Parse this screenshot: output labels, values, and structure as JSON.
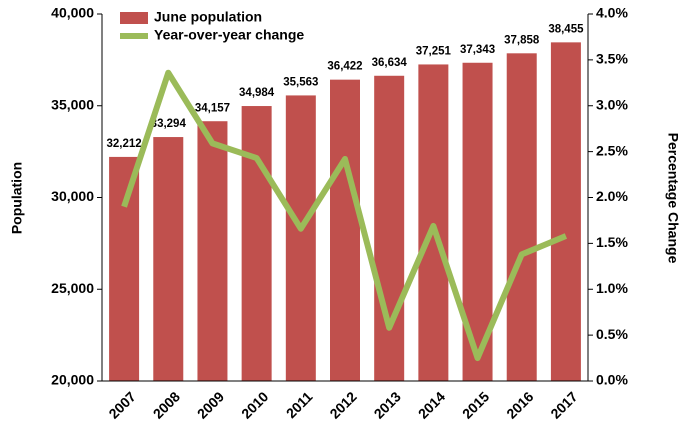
{
  "chart_data": {
    "type": "bar",
    "categories": [
      "2007",
      "2008",
      "2009",
      "2010",
      "2011",
      "2012",
      "2013",
      "2014",
      "2015",
      "2016",
      "2017"
    ],
    "series": [
      {
        "name": "June population",
        "type": "bar",
        "color": "#c0504d",
        "values": [
          32212,
          33294,
          34157,
          34984,
          35563,
          36422,
          36634,
          37251,
          37343,
          37858,
          38455
        ],
        "value_labels": [
          "32,212",
          "33,294",
          "34,157",
          "34,984",
          "35,563",
          "36,422",
          "36,634",
          "37,251",
          "37,343",
          "37,858",
          "38,455"
        ]
      },
      {
        "name": "Year-over-year change",
        "type": "line",
        "axis": "y2",
        "color": "#9bbb59",
        "values": [
          1.9,
          3.36,
          2.59,
          2.43,
          1.66,
          2.42,
          0.58,
          1.69,
          0.25,
          1.38,
          1.58
        ]
      }
    ],
    "ylabel": "Population",
    "y2label": "Percentage Change",
    "ylim": [
      20000,
      40000
    ],
    "yticks": [
      {
        "value": 20000,
        "label": "20,000"
      },
      {
        "value": 25000,
        "label": "25,000"
      },
      {
        "value": 30000,
        "label": "30,000"
      },
      {
        "value": 35000,
        "label": "35,000"
      },
      {
        "value": 40000,
        "label": "40,000"
      }
    ],
    "y2lim": [
      0,
      4
    ],
    "y2ticks": [
      {
        "value": 0,
        "label": "0.0%"
      },
      {
        "value": 0.5,
        "label": "0.5%"
      },
      {
        "value": 1,
        "label": "1.0%"
      },
      {
        "value": 1.5,
        "label": "1.5%"
      },
      {
        "value": 2,
        "label": "2.0%"
      },
      {
        "value": 2.5,
        "label": "2.5%"
      },
      {
        "value": 3,
        "label": "3.0%"
      },
      {
        "value": 3.5,
        "label": "3.5%"
      },
      {
        "value": 4,
        "label": "4.0%"
      }
    ],
    "legend": "top-left",
    "grid": false
  }
}
